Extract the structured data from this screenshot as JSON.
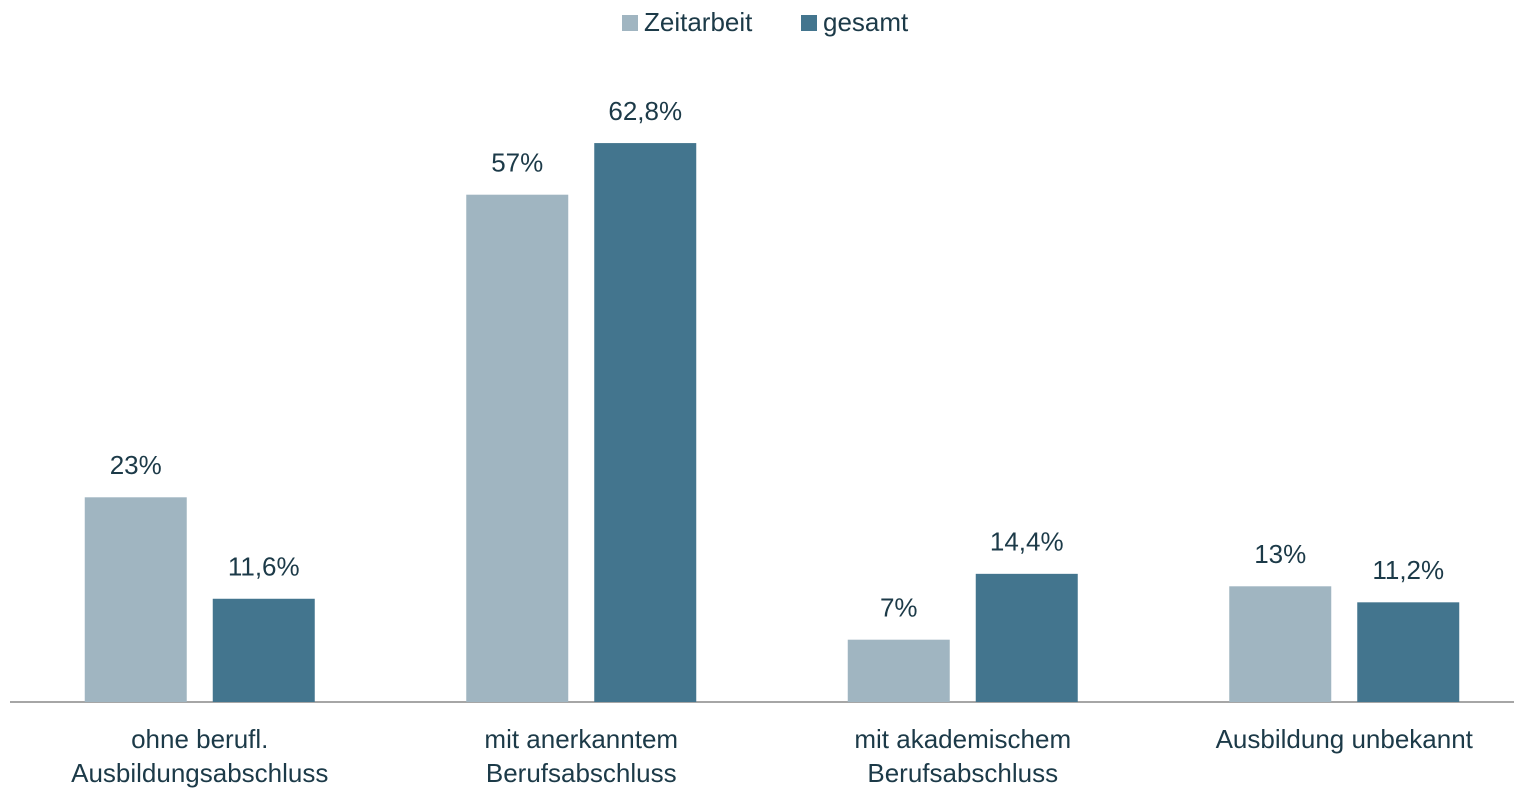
{
  "chart_data": {
    "type": "bar",
    "categories": [
      "ohne berufl. Ausbildungsabschluss",
      "mit anerkanntem Berufsabschluss",
      "mit akademischem Berufsabschluss",
      "Ausbildung unbekannt"
    ],
    "series": [
      {
        "name": "Zeitarbeit",
        "color": "#a0b5c1",
        "values": [
          23,
          57,
          7,
          13
        ],
        "value_labels": [
          "23%",
          "57%",
          "7%",
          "13%"
        ]
      },
      {
        "name": "gesamt",
        "color": "#43758e",
        "values": [
          11.6,
          62.8,
          14.4,
          11.2
        ],
        "value_labels": [
          "11,6%",
          "62,8%",
          "14,4%",
          "11,2%"
        ]
      }
    ],
    "legend": "top"
  }
}
